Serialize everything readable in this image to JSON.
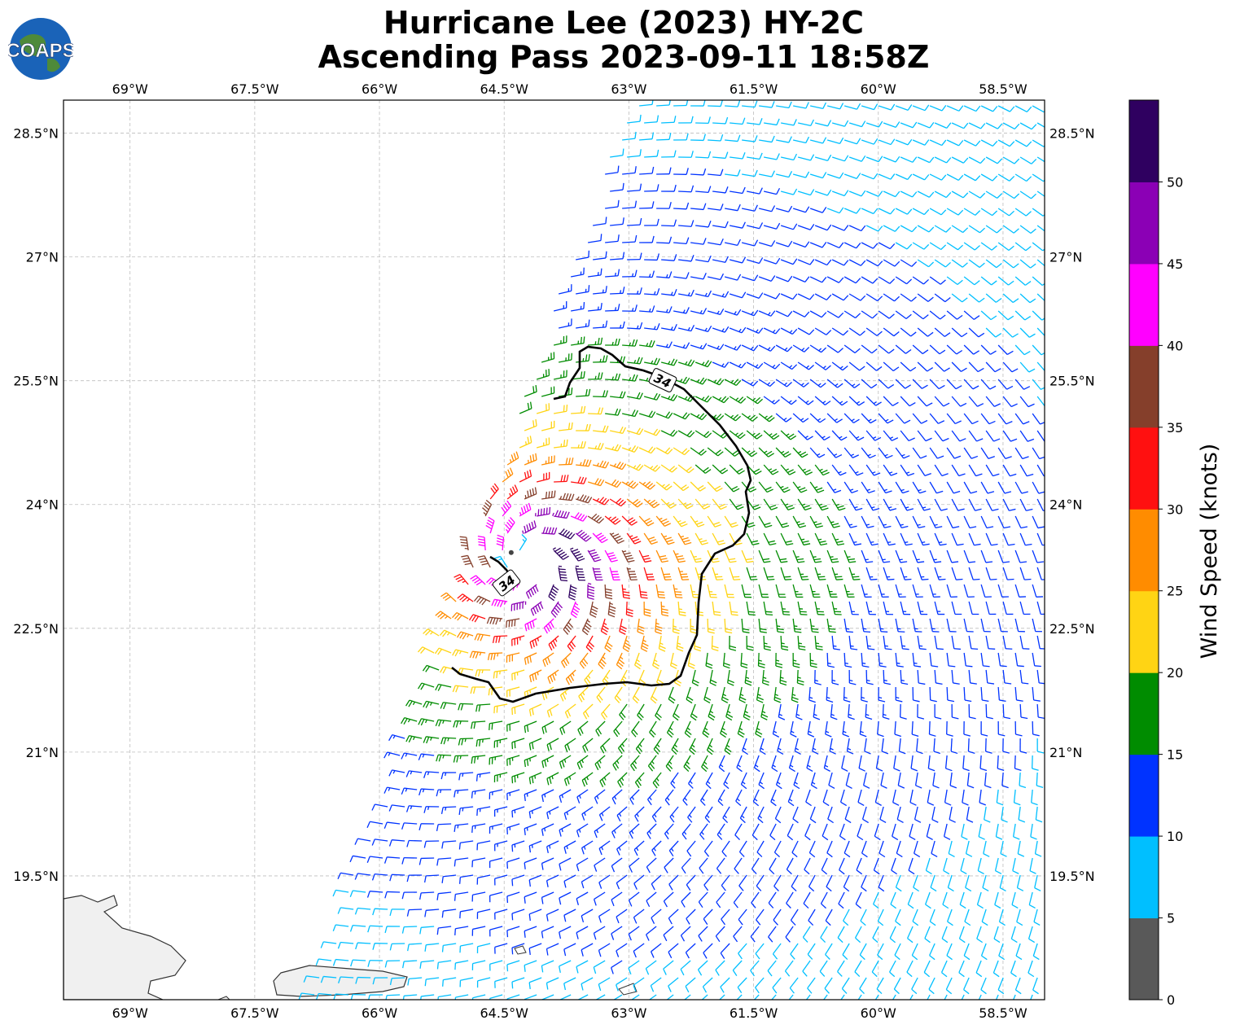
{
  "title_line1": "Hurricane Lee (2023) HY-2C",
  "title_line2": "Ascending Pass 2023-09-11 18:58Z",
  "logo_text": "COAPS",
  "map": {
    "lon_ticks": [
      "69°W",
      "67.5°W",
      "66°W",
      "64.5°W",
      "63°W",
      "61.5°W",
      "60°W",
      "58.5°W"
    ],
    "lon_values": [
      -69,
      -67.5,
      -66,
      -64.5,
      -63,
      -61.5,
      -60,
      -58.5
    ],
    "lat_ticks": [
      "28.5°N",
      "27°N",
      "25.5°N",
      "24°N",
      "22.5°N",
      "21°N",
      "19.5°N"
    ],
    "lat_values": [
      28.5,
      27,
      25.5,
      24,
      22.5,
      21,
      19.5
    ],
    "lon_range": [
      -69.8,
      -58.0
    ],
    "lat_range": [
      18.0,
      28.9
    ],
    "storm_center": {
      "lon": -64.2,
      "lat": 23.3
    },
    "contour_label": "34",
    "contour_color": "#000000",
    "land_color": "#f0f0f0"
  },
  "colorbar": {
    "label": "Wind Speed (knots)",
    "ticks": [
      "0",
      "5",
      "10",
      "15",
      "20",
      "25",
      "30",
      "35",
      "40",
      "45",
      "50"
    ],
    "bins": [
      {
        "min": 0,
        "max": 5,
        "color": "#595959"
      },
      {
        "min": 5,
        "max": 10,
        "color": "#00bfff"
      },
      {
        "min": 10,
        "max": 15,
        "color": "#0033ff"
      },
      {
        "min": 15,
        "max": 20,
        "color": "#008c00"
      },
      {
        "min": 20,
        "max": 25,
        "color": "#ffd414"
      },
      {
        "min": 25,
        "max": 30,
        "color": "#ff8c00"
      },
      {
        "min": 30,
        "max": 35,
        "color": "#ff1010"
      },
      {
        "min": 35,
        "max": 40,
        "color": "#853f2b"
      },
      {
        "min": 40,
        "max": 45,
        "color": "#ff00ff"
      },
      {
        "min": 45,
        "max": 50,
        "color": "#8b00b5"
      },
      {
        "min": 50,
        "max": 55,
        "color": "#2f0060"
      }
    ]
  }
}
